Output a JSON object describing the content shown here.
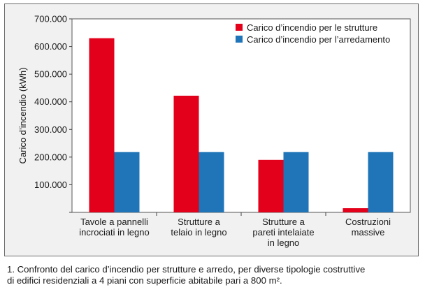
{
  "chart_data": {
    "type": "bar",
    "ylabel": "Carico d’incendio (kWh)",
    "ylim": [
      0,
      700000
    ],
    "yticks": [
      "700.000",
      "600.000",
      "500.000",
      "400.000",
      "300.000",
      "200.000",
      "100.000"
    ],
    "categories": [
      [
        "Tavole a pannelli",
        "incrociati in legno"
      ],
      [
        "Strutture a",
        "telaio in legno"
      ],
      [
        "Strutture a",
        "pareti intelaiate",
        "in legno"
      ],
      [
        "Costruzioni",
        "massive"
      ]
    ],
    "series": [
      {
        "name": "Carico d’incendio per le strutture",
        "color": "#e2001a",
        "values": [
          630000,
          422000,
          190000,
          15000
        ]
      },
      {
        "name": "Carico d’incendio per l’arredamento",
        "color": "#1f75b8",
        "values": [
          218000,
          218000,
          218000,
          218000
        ]
      }
    ],
    "legend_position": "top-right",
    "grid": false
  },
  "caption": {
    "line1": "1. Confronto del carico d’incendio per strutture e arredo, per diverse tipologie costruttive",
    "line2": "di edifici residenziali a 4 piani con superficie abitabile pari a 800 m²."
  }
}
